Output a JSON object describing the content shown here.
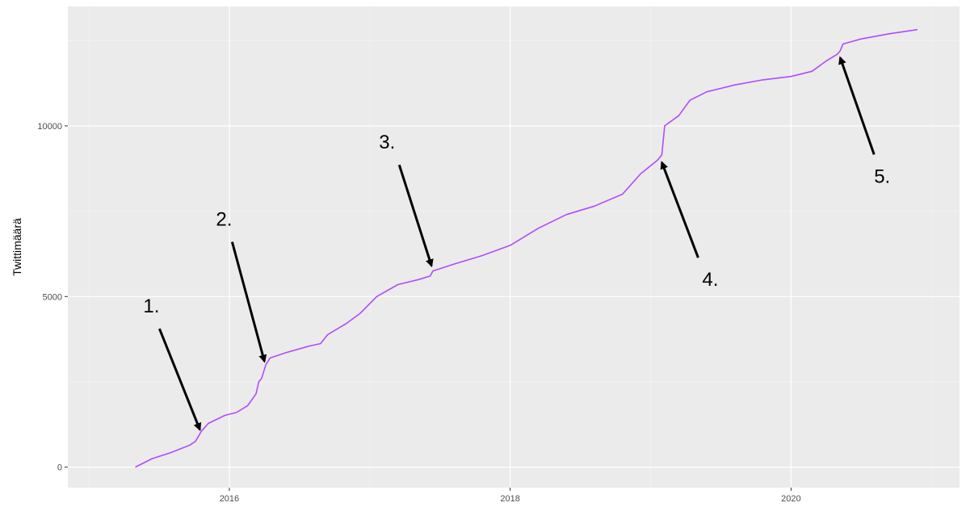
{
  "chart_data": {
    "type": "line",
    "title": "",
    "xlabel": "",
    "ylabel": "Twittimäärä",
    "xlim": [
      2014.85,
      2021.2
    ],
    "ylim": [
      -600,
      13500
    ],
    "x_ticks": [
      {
        "value": 2016,
        "label": "2016"
      },
      {
        "value": 2018,
        "label": "2018"
      },
      {
        "value": 2020,
        "label": "2020"
      }
    ],
    "y_ticks": [
      {
        "value": 0,
        "label": "0"
      },
      {
        "value": 5000,
        "label": "5000"
      },
      {
        "value": 10000,
        "label": "10000"
      }
    ],
    "grid": true,
    "legend": "none",
    "colors": {
      "line": "#b04bff",
      "panel": "#ebebeb",
      "grid_major": "#ffffff",
      "grid_minor": "#f5f5f5",
      "arrow": "#000000"
    },
    "series": [
      {
        "x": [
          2015.33,
          2015.45,
          2015.58,
          2015.72,
          2015.76,
          2015.8,
          2015.85,
          2015.97,
          2016.05,
          2016.13,
          2016.19,
          2016.21,
          2016.23,
          2016.26,
          2016.29,
          2016.4,
          2016.57,
          2016.65,
          2016.7,
          2016.83,
          2016.93,
          2017.05,
          2017.2,
          2017.35,
          2017.43,
          2017.45,
          2017.6,
          2017.8,
          2018.0,
          2018.2,
          2018.4,
          2018.6,
          2018.8,
          2018.93,
          2019.05,
          2019.08,
          2019.1,
          2019.2,
          2019.28,
          2019.4,
          2019.6,
          2019.8,
          2020.0,
          2020.15,
          2020.25,
          2020.33,
          2020.35,
          2020.37,
          2020.5,
          2020.7,
          2020.9
        ],
        "values": [
          0,
          250,
          420,
          650,
          760,
          1050,
          1280,
          1520,
          1600,
          1800,
          2150,
          2500,
          2600,
          3000,
          3200,
          3350,
          3550,
          3620,
          3880,
          4200,
          4500,
          5000,
          5350,
          5500,
          5600,
          5750,
          5950,
          6200,
          6500,
          7000,
          7400,
          7650,
          8000,
          8600,
          9000,
          9150,
          10000,
          10300,
          10750,
          11000,
          11200,
          11350,
          11450,
          11600,
          11900,
          12100,
          12200,
          12400,
          12550,
          12700,
          12820
        ]
      }
    ],
    "annotations": [
      {
        "label": "1.",
        "tip": {
          "x": 2015.79,
          "y": 1100
        }
      },
      {
        "label": "2.",
        "tip": {
          "x": 2016.25,
          "y": 3100
        }
      },
      {
        "label": "3.",
        "tip": {
          "x": 2017.44,
          "y": 5900
        }
      },
      {
        "label": "4.",
        "tip": {
          "x": 2019.08,
          "y": 8930
        }
      },
      {
        "label": "5.",
        "tip": {
          "x": 2020.35,
          "y": 12000
        }
      }
    ]
  }
}
